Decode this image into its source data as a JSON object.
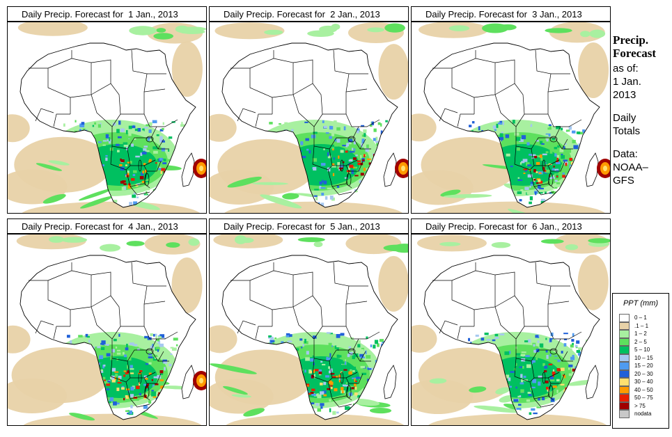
{
  "panels": [
    {
      "title": "Daily Precip. Forecast for  1 Jan., 2013",
      "day": 1
    },
    {
      "title": "Daily Precip. Forecast for  2 Jan., 2013",
      "day": 2
    },
    {
      "title": "Daily Precip. Forecast for  3 Jan., 2013",
      "day": 3
    },
    {
      "title": "Daily Precip. Forecast for  4 Jan., 2013",
      "day": 4
    },
    {
      "title": "Daily Precip. Forecast for  5 Jan., 2013",
      "day": 5
    },
    {
      "title": "Daily Precip. Forecast for  6 Jan., 2013",
      "day": 6
    }
  ],
  "side": {
    "title_line1": "Precip.",
    "title_line2": "Forecast",
    "asof_label": "as of:",
    "asof_line1": "1 Jan.",
    "asof_line2": "2013",
    "totals_line1": "Daily",
    "totals_line2": "Totals",
    "data_line1": "Data:",
    "data_line2": "NOAA–",
    "data_line3": "GFS"
  },
  "legend": {
    "title": "PPT (mm)",
    "classes": [
      {
        "label": "0 – 1",
        "color": "#ffffff"
      },
      {
        "label": ".1 – 1",
        "color": "#e8d2a8"
      },
      {
        "label": "1 – 2",
        "color": "#a8f0a0"
      },
      {
        "label": "2 – 5",
        "color": "#5ee05e"
      },
      {
        "label": "5 – 10",
        "color": "#00c060"
      },
      {
        "label": "10 – 15",
        "color": "#a6c8f0"
      },
      {
        "label": "15 – 20",
        "color": "#4f9bf0"
      },
      {
        "label": "20 – 30",
        "color": "#2060d8"
      },
      {
        "label": "30 – 40",
        "color": "#ffe070"
      },
      {
        "label": "40 – 50",
        "color": "#ff9a00"
      },
      {
        "label": "50 – 75",
        "color": "#e82000"
      },
      {
        "label": "> 75",
        "color": "#a00000"
      },
      {
        "label": "nodata",
        "color": "#c8c8c8"
      }
    ]
  }
}
